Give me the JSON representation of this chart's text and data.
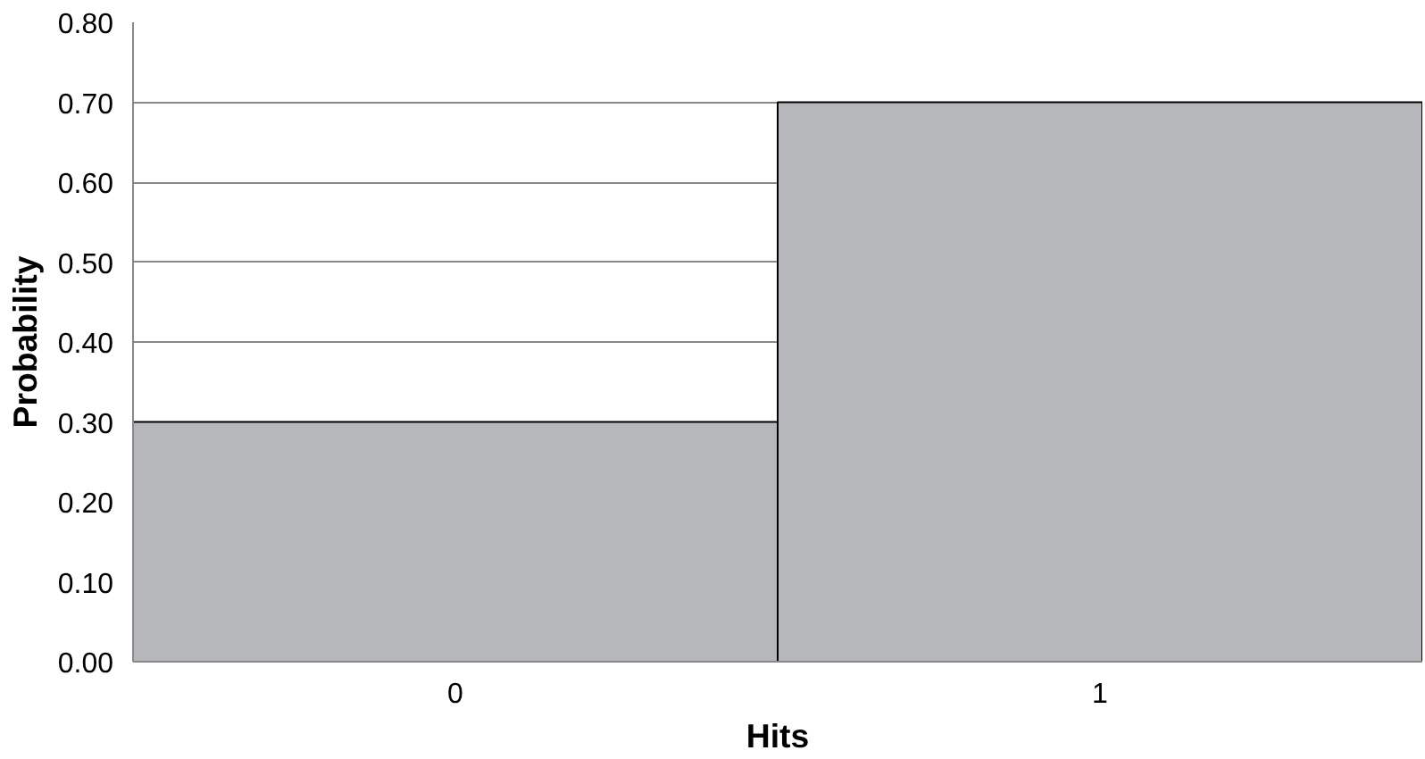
{
  "chart_data": {
    "type": "bar",
    "xlabel": "Hits",
    "ylabel": "Probability",
    "categories": [
      "0",
      "1"
    ],
    "values": [
      0.3,
      0.7
    ],
    "color": "#b6b7bb",
    "ylim": [
      0,
      0.8
    ],
    "yticks": [
      {
        "value": 0,
        "label": "0.00"
      },
      {
        "value": 0.1,
        "label": "0.10"
      },
      {
        "value": 0.2,
        "label": "0.20"
      },
      {
        "value": 0.3,
        "label": "0.30"
      },
      {
        "value": 0.4,
        "label": "0.40"
      },
      {
        "value": 0.5,
        "label": "0.50"
      },
      {
        "value": 0.6,
        "label": "0.60"
      },
      {
        "value": 0.7,
        "label": "0.70"
      },
      {
        "value": 0.8,
        "label": "0.80"
      }
    ],
    "grid": "y"
  }
}
